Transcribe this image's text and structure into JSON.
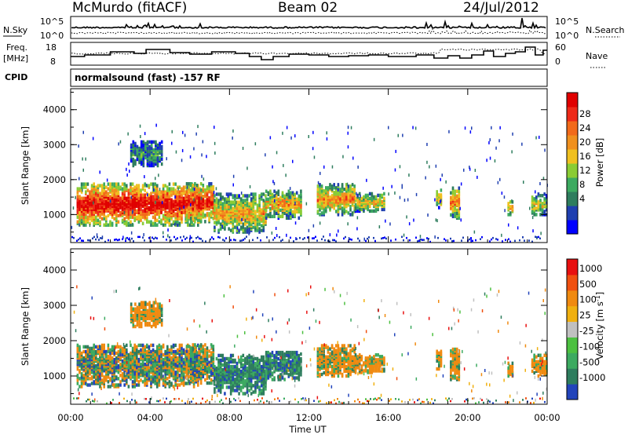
{
  "header": {
    "station": "McMurdo (fitACF)",
    "beam": "Beam 02",
    "date": "24/Jul/2012"
  },
  "top_panel": {
    "left_label": "N.Sky",
    "right_label": "N.Search",
    "left_ticks": [
      "10^5",
      "10^0"
    ],
    "right_ticks": [
      "10^5",
      "10^0"
    ]
  },
  "freq_panel": {
    "left_label_1": "Freq.",
    "left_label_2": "[MHz]",
    "right_label": "Nave",
    "left_ticks": [
      "18",
      "8"
    ],
    "right_ticks": [
      "60",
      "0"
    ]
  },
  "cpid": {
    "label": "CPID",
    "value": "normalsound (fast) -157 RF"
  },
  "chart_data": [
    {
      "type": "heatmap",
      "name": "power",
      "ylabel": "Slant Range [km]",
      "xlabel": "Time UT",
      "x_ticks": [
        "00:00",
        "04:00",
        "08:00",
        "12:00",
        "16:00",
        "20:00",
        "00:00"
      ],
      "y_ticks": [
        "1000",
        "2000",
        "3000",
        "4000"
      ],
      "ylim": [
        200,
        4600
      ],
      "xlim_hours": [
        0,
        24
      ],
      "colorbar_label": "Power [dB]",
      "colorbar_ticks": [
        "28",
        "24",
        "20",
        "16",
        "12",
        "8",
        "4"
      ],
      "colorbar_colors": [
        "#0000ff",
        "#1f3fb0",
        "#2e7d5e",
        "#3caa60",
        "#8acc34",
        "#f0c020",
        "#f0901e",
        "#f26a1a",
        "#ee2a18",
        "#e00000"
      ]
    },
    {
      "type": "heatmap",
      "name": "velocity",
      "ylabel": "Slant Range [km]",
      "xlabel": "Time UT",
      "x_ticks": [
        "00:00",
        "04:00",
        "08:00",
        "12:00",
        "16:00",
        "20:00",
        "00:00"
      ],
      "y_ticks": [
        "1000",
        "2000",
        "3000",
        "4000"
      ],
      "ylim": [
        200,
        4600
      ],
      "xlim_hours": [
        0,
        24
      ],
      "colorbar_label": "Velocity [m s",
      "colorbar_label_sup": "-1",
      "colorbar_label_end": "]",
      "colorbar_ticks": [
        "1000",
        "500",
        "100",
        "25",
        "-25",
        "-100",
        "-500",
        "-1000"
      ],
      "colorbar_colors": [
        "#2244bb",
        "#2e7d5e",
        "#3caa60",
        "#4cc040",
        "#c0c0c0",
        "#f0b010",
        "#f08a10",
        "#f05010",
        "#e81010"
      ]
    }
  ]
}
